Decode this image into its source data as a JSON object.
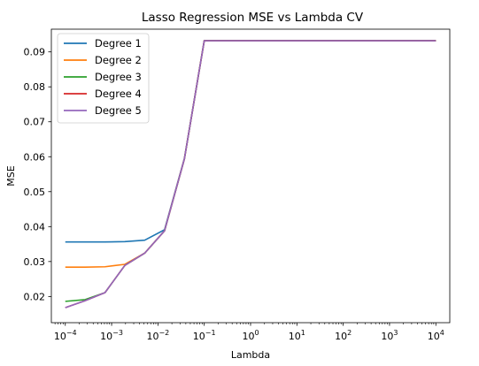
{
  "chart_data": {
    "type": "line",
    "title": "Lasso Regression MSE vs Lambda CV",
    "xlabel": "Lambda",
    "ylabel": "MSE",
    "xscale": "log",
    "xlim": [
      5e-05,
      20000
    ],
    "ylim": [
      0.0125,
      0.0965
    ],
    "xticks": [
      {
        "value": 0.0001,
        "base": "10",
        "exp": "−4"
      },
      {
        "value": 0.001,
        "base": "10",
        "exp": "−3"
      },
      {
        "value": 0.01,
        "base": "10",
        "exp": "−2"
      },
      {
        "value": 0.1,
        "base": "10",
        "exp": "−1"
      },
      {
        "value": 1,
        "base": "10",
        "exp": "0"
      },
      {
        "value": 10,
        "base": "10",
        "exp": "1"
      },
      {
        "value": 100,
        "base": "10",
        "exp": "2"
      },
      {
        "value": 1000,
        "base": "10",
        "exp": "3"
      },
      {
        "value": 10000,
        "base": "10",
        "exp": "4"
      }
    ],
    "yticks": [
      {
        "value": 0.02,
        "label": "0.02"
      },
      {
        "value": 0.03,
        "label": "0.03"
      },
      {
        "value": 0.04,
        "label": "0.04"
      },
      {
        "value": 0.05,
        "label": "0.05"
      },
      {
        "value": 0.06,
        "label": "0.06"
      },
      {
        "value": 0.07,
        "label": "0.07"
      },
      {
        "value": 0.08,
        "label": "0.08"
      },
      {
        "value": 0.09,
        "label": "0.09"
      }
    ],
    "grid": false,
    "legend_position": "top-left",
    "x": [
      0.0001,
      0.0002683,
      0.0007197,
      0.001931,
      0.005179,
      0.01389,
      0.03728,
      0.1,
      0.2683,
      0.7197,
      1.931,
      5.179,
      13.89,
      37.28,
      100,
      268.3,
      719.7,
      1931,
      5179,
      10000
    ],
    "series": [
      {
        "name": "Degree 1",
        "color": "#1f77b4",
        "values": [
          0.0356,
          0.0356,
          0.0356,
          0.0357,
          0.0361,
          0.0391,
          0.0595,
          0.0932,
          0.0932,
          0.0932,
          0.0932,
          0.0932,
          0.0932,
          0.0932,
          0.0932,
          0.0932,
          0.0932,
          0.0932,
          0.0932,
          0.0932
        ]
      },
      {
        "name": "Degree 2",
        "color": "#ff7f0e",
        "values": [
          0.0284,
          0.0284,
          0.0285,
          0.0292,
          0.0324,
          0.0388,
          0.0594,
          0.0932,
          0.0932,
          0.0932,
          0.0932,
          0.0932,
          0.0932,
          0.0932,
          0.0932,
          0.0932,
          0.0932,
          0.0932,
          0.0932,
          0.0932
        ]
      },
      {
        "name": "Degree 3",
        "color": "#2ca02c",
        "values": [
          0.0186,
          0.0191,
          0.0211,
          0.0289,
          0.0324,
          0.0388,
          0.0594,
          0.0932,
          0.0932,
          0.0932,
          0.0932,
          0.0932,
          0.0932,
          0.0932,
          0.0932,
          0.0932,
          0.0932,
          0.0932,
          0.0932,
          0.0932
        ]
      },
      {
        "name": "Degree 4",
        "color": "#d62728",
        "values": [
          0.0168,
          0.0188,
          0.0211,
          0.0289,
          0.0324,
          0.0388,
          0.0594,
          0.0932,
          0.0932,
          0.0932,
          0.0932,
          0.0932,
          0.0932,
          0.0932,
          0.0932,
          0.0932,
          0.0932,
          0.0932,
          0.0932,
          0.0932
        ]
      },
      {
        "name": "Degree 5",
        "color": "#9467bd",
        "values": [
          0.0168,
          0.0188,
          0.0211,
          0.0289,
          0.0324,
          0.0388,
          0.0594,
          0.0932,
          0.0932,
          0.0932,
          0.0932,
          0.0932,
          0.0932,
          0.0932,
          0.0932,
          0.0932,
          0.0932,
          0.0932,
          0.0932,
          0.0932
        ]
      }
    ]
  }
}
